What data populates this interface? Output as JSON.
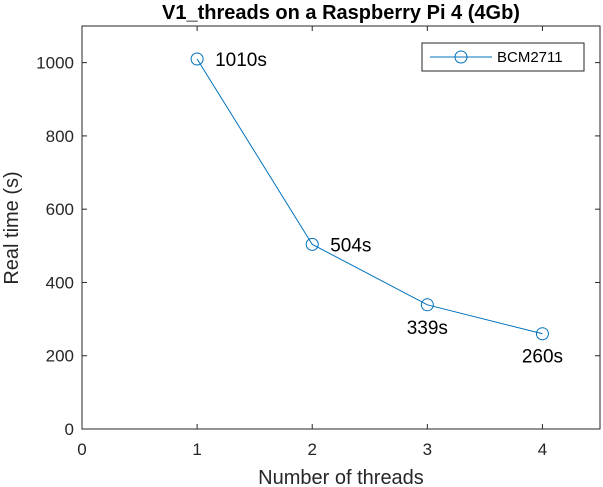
{
  "chart_data": {
    "type": "line",
    "title": "V1_threads on a Raspberry Pi 4 (4Gb)",
    "xlabel": "Number of threads",
    "ylabel": "Real time (s)",
    "xlim": [
      0,
      4.5
    ],
    "ylim": [
      0,
      1100
    ],
    "xticks": [
      0,
      1,
      2,
      3,
      4
    ],
    "yticks": [
      0,
      200,
      400,
      600,
      800,
      1000
    ],
    "grid": false,
    "legend_position": "top-right",
    "series": [
      {
        "name": "BCM2711",
        "color": "#0072BD",
        "marker": "circle",
        "x": [
          1,
          2,
          3,
          4
        ],
        "y": [
          1010,
          504,
          339,
          260
        ]
      }
    ],
    "annotations": [
      {
        "x": 1,
        "y": 1010,
        "text": "1010s",
        "placement": "right"
      },
      {
        "x": 2,
        "y": 504,
        "text": "504s",
        "placement": "right"
      },
      {
        "x": 3,
        "y": 339,
        "text": "339s",
        "placement": "below"
      },
      {
        "x": 4,
        "y": 260,
        "text": "260s",
        "placement": "below"
      }
    ]
  }
}
